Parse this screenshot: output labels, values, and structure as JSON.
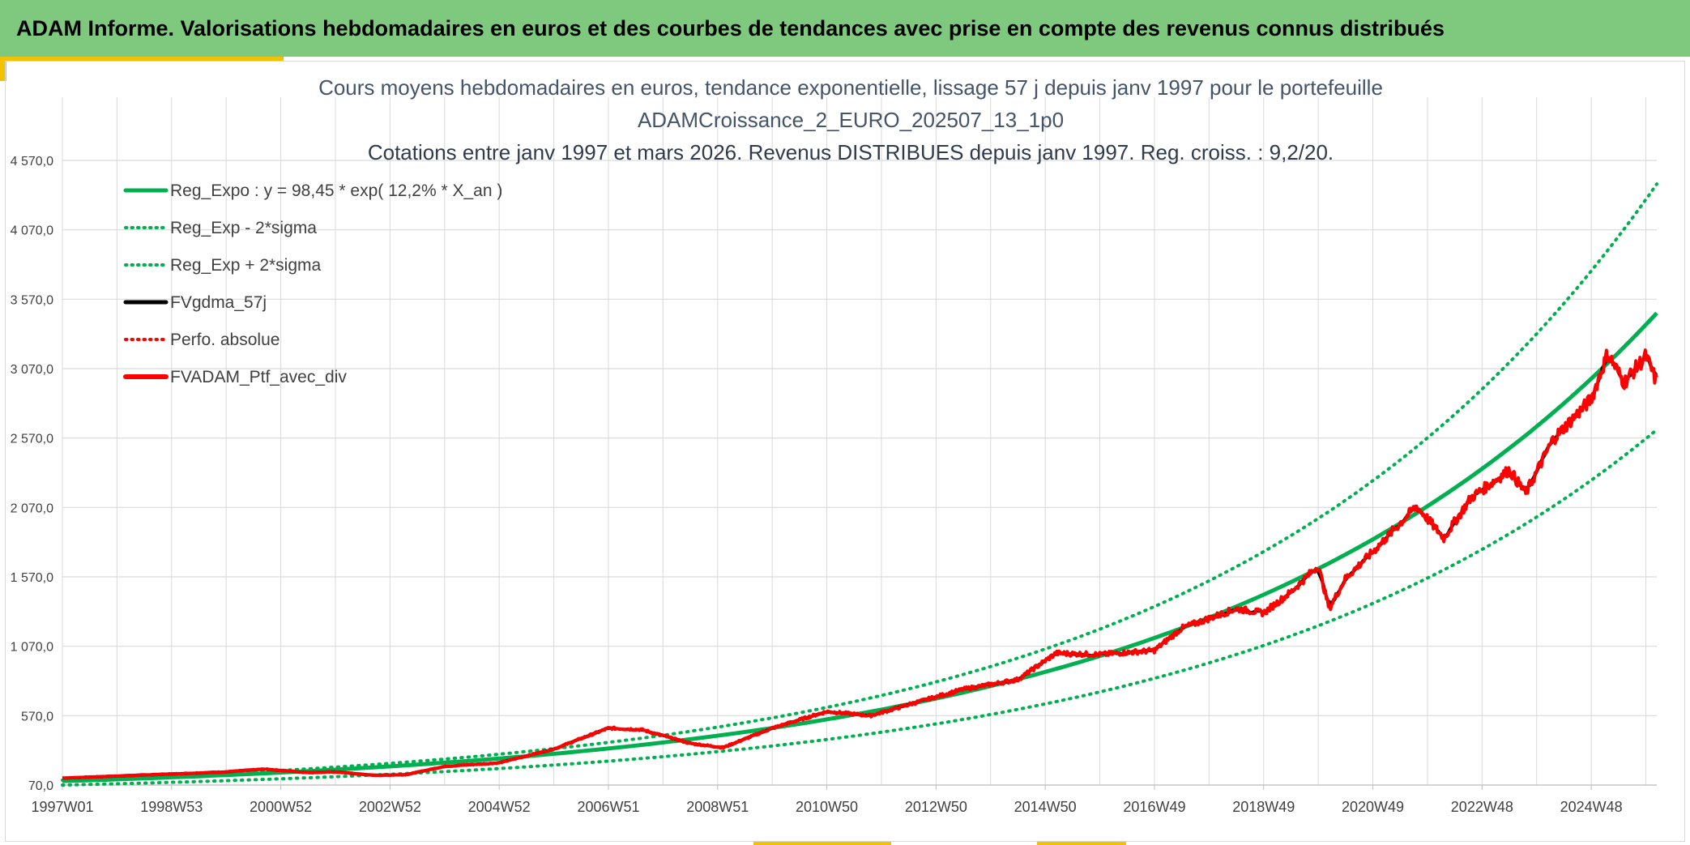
{
  "header": {
    "banner_text": "ADAM Informe. Valorisations hebdomadaires en euros et des courbes de tendances avec prise en compte des revenus connus distribués"
  },
  "colors": {
    "banner": "#7fc97f",
    "accent": "#f2c200",
    "trend": "#00b050",
    "smooth": "#000000",
    "portfolio": "#ff0000",
    "grid": "#d9d9d9"
  },
  "chart_data": {
    "type": "line",
    "title": "Cours moyens hebdomadaires en euros, tendance exponentielle, lissage 57 j depuis janv 1997 pour le portefeuille",
    "subtitle": "ADAMCroissance_2_EURO_202507_13_1p0",
    "subtitle2": "Cotations entre janv 1997 et mars 2026. Revenus DISTRIBUES depuis janv 1997. Reg. croiss. : 9,2/20.",
    "xlabel": "",
    "ylabel": "",
    "ylim": [
      70,
      4570
    ],
    "yticks": [
      70,
      570,
      1070,
      1570,
      2070,
      2570,
      3070,
      3570,
      4070,
      4570
    ],
    "ytick_labels": [
      "70,0",
      "570,0",
      "1 070,0",
      "1 570,0",
      "2 070,0",
      "2 570,0",
      "3 070,0",
      "3 570,0",
      "4 070,0",
      "4 570,0"
    ],
    "x_range_years": [
      1997.0,
      2026.2
    ],
    "x_ticks": [
      {
        "label": "1997W01",
        "year": 1997.0
      },
      {
        "label": "1998W53",
        "year": 1999.0
      },
      {
        "label": "2000W52",
        "year": 2001.0
      },
      {
        "label": "2002W52",
        "year": 2003.0
      },
      {
        "label": "2004W52",
        "year": 2005.0
      },
      {
        "label": "2006W51",
        "year": 2007.0
      },
      {
        "label": "2008W51",
        "year": 2009.0
      },
      {
        "label": "2010W50",
        "year": 2011.0
      },
      {
        "label": "2012W50",
        "year": 2013.0
      },
      {
        "label": "2014W50",
        "year": 2015.0
      },
      {
        "label": "2016W49",
        "year": 2017.0
      },
      {
        "label": "2018W49",
        "year": 2019.0
      },
      {
        "label": "2020W49",
        "year": 2021.0
      },
      {
        "label": "2022W48",
        "year": 2023.0
      },
      {
        "label": "2024W48",
        "year": 2025.0
      }
    ],
    "legend_position": "top-left",
    "grid": true,
    "regression": {
      "a": 98.45,
      "rate": 0.122
    },
    "series": [
      {
        "name": "Reg_Expo : y = 98,45 * exp( 12,2% *  X_an )",
        "style": "solid-green"
      },
      {
        "name": "Reg_Exp - 2*sigma",
        "style": "dotted-green"
      },
      {
        "name": "Reg_Exp + 2*sigma",
        "style": "dotted-green"
      },
      {
        "name": "FVgdma_57j",
        "style": "solid-black"
      },
      {
        "name": "Perfo. absolue",
        "style": "dotted-red"
      },
      {
        "name": "FVADAM_Ptf_avec_div",
        "style": "solid-red"
      }
    ],
    "band_values": {
      "x": [
        1997.0,
        2026.2
      ],
      "lower": [
        70,
        2630
      ],
      "upper": [
        105,
        4400
      ]
    },
    "portfolio_values": [
      {
        "x": 1997.0,
        "y": 120
      },
      {
        "x": 1998.0,
        "y": 135
      },
      {
        "x": 1999.0,
        "y": 150
      },
      {
        "x": 2000.0,
        "y": 165
      },
      {
        "x": 2000.7,
        "y": 185
      },
      {
        "x": 2001.5,
        "y": 160
      },
      {
        "x": 2002.0,
        "y": 165
      },
      {
        "x": 2002.7,
        "y": 140
      },
      {
        "x": 2003.3,
        "y": 145
      },
      {
        "x": 2004.0,
        "y": 205
      },
      {
        "x": 2005.0,
        "y": 230
      },
      {
        "x": 2006.0,
        "y": 330
      },
      {
        "x": 2007.0,
        "y": 480
      },
      {
        "x": 2007.6,
        "y": 470
      },
      {
        "x": 2008.5,
        "y": 370
      },
      {
        "x": 2009.1,
        "y": 340
      },
      {
        "x": 2010.0,
        "y": 480
      },
      {
        "x": 2011.0,
        "y": 600
      },
      {
        "x": 2011.8,
        "y": 570
      },
      {
        "x": 2012.5,
        "y": 650
      },
      {
        "x": 2013.5,
        "y": 760
      },
      {
        "x": 2014.5,
        "y": 830
      },
      {
        "x": 2015.2,
        "y": 1020
      },
      {
        "x": 2016.0,
        "y": 1010
      },
      {
        "x": 2017.0,
        "y": 1040
      },
      {
        "x": 2017.5,
        "y": 1200
      },
      {
        "x": 2018.5,
        "y": 1340
      },
      {
        "x": 2019.0,
        "y": 1310
      },
      {
        "x": 2019.5,
        "y": 1460
      },
      {
        "x": 2020.0,
        "y": 1650
      },
      {
        "x": 2020.2,
        "y": 1340
      },
      {
        "x": 2020.5,
        "y": 1560
      },
      {
        "x": 2021.0,
        "y": 1750
      },
      {
        "x": 2021.8,
        "y": 2080
      },
      {
        "x": 2022.3,
        "y": 1850
      },
      {
        "x": 2022.8,
        "y": 2140
      },
      {
        "x": 2023.5,
        "y": 2340
      },
      {
        "x": 2023.8,
        "y": 2170
      },
      {
        "x": 2024.3,
        "y": 2560
      },
      {
        "x": 2025.0,
        "y": 2850
      },
      {
        "x": 2025.3,
        "y": 3180
      },
      {
        "x": 2025.6,
        "y": 2970
      },
      {
        "x": 2026.0,
        "y": 3160
      },
      {
        "x": 2026.2,
        "y": 2970
      }
    ]
  }
}
